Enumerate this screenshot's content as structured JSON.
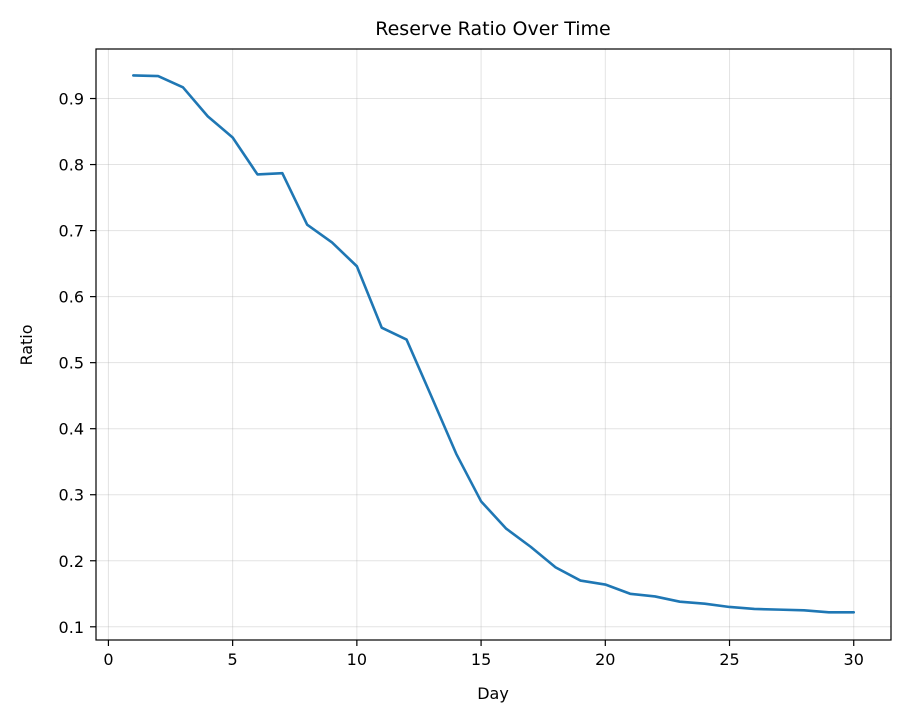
{
  "chart_data": {
    "type": "line",
    "title": "Reserve Ratio Over Time",
    "xlabel": "Day",
    "ylabel": "Ratio",
    "xlim": [
      -0.5,
      31.5
    ],
    "ylim": [
      0.08,
      0.975
    ],
    "x_ticks": [
      0,
      5,
      10,
      15,
      20,
      25,
      30
    ],
    "y_ticks": [
      0.1,
      0.2,
      0.3,
      0.4,
      0.5,
      0.6,
      0.7,
      0.8,
      0.9
    ],
    "x_tick_labels": [
      "0",
      "5",
      "10",
      "15",
      "20",
      "25",
      "30"
    ],
    "y_tick_labels": [
      "0.1",
      "0.2",
      "0.3",
      "0.4",
      "0.5",
      "0.6",
      "0.7",
      "0.8",
      "0.9"
    ],
    "grid": true,
    "legend": false,
    "series": [
      {
        "color": "#1f77b4",
        "x": [
          1,
          2,
          3,
          4,
          5,
          6,
          7,
          8,
          9,
          10,
          11,
          12,
          13,
          14,
          15,
          16,
          17,
          18,
          19,
          20,
          21,
          22,
          23,
          24,
          25,
          26,
          27,
          28,
          29,
          30
        ],
        "y": [
          0.935,
          0.934,
          0.917,
          0.873,
          0.841,
          0.785,
          0.787,
          0.709,
          0.682,
          0.646,
          0.553,
          0.535,
          0.449,
          0.362,
          0.29,
          0.249,
          0.221,
          0.19,
          0.17,
          0.164,
          0.15,
          0.146,
          0.138,
          0.135,
          0.13,
          0.127,
          0.126,
          0.125,
          0.122,
          0.122
        ]
      }
    ]
  }
}
